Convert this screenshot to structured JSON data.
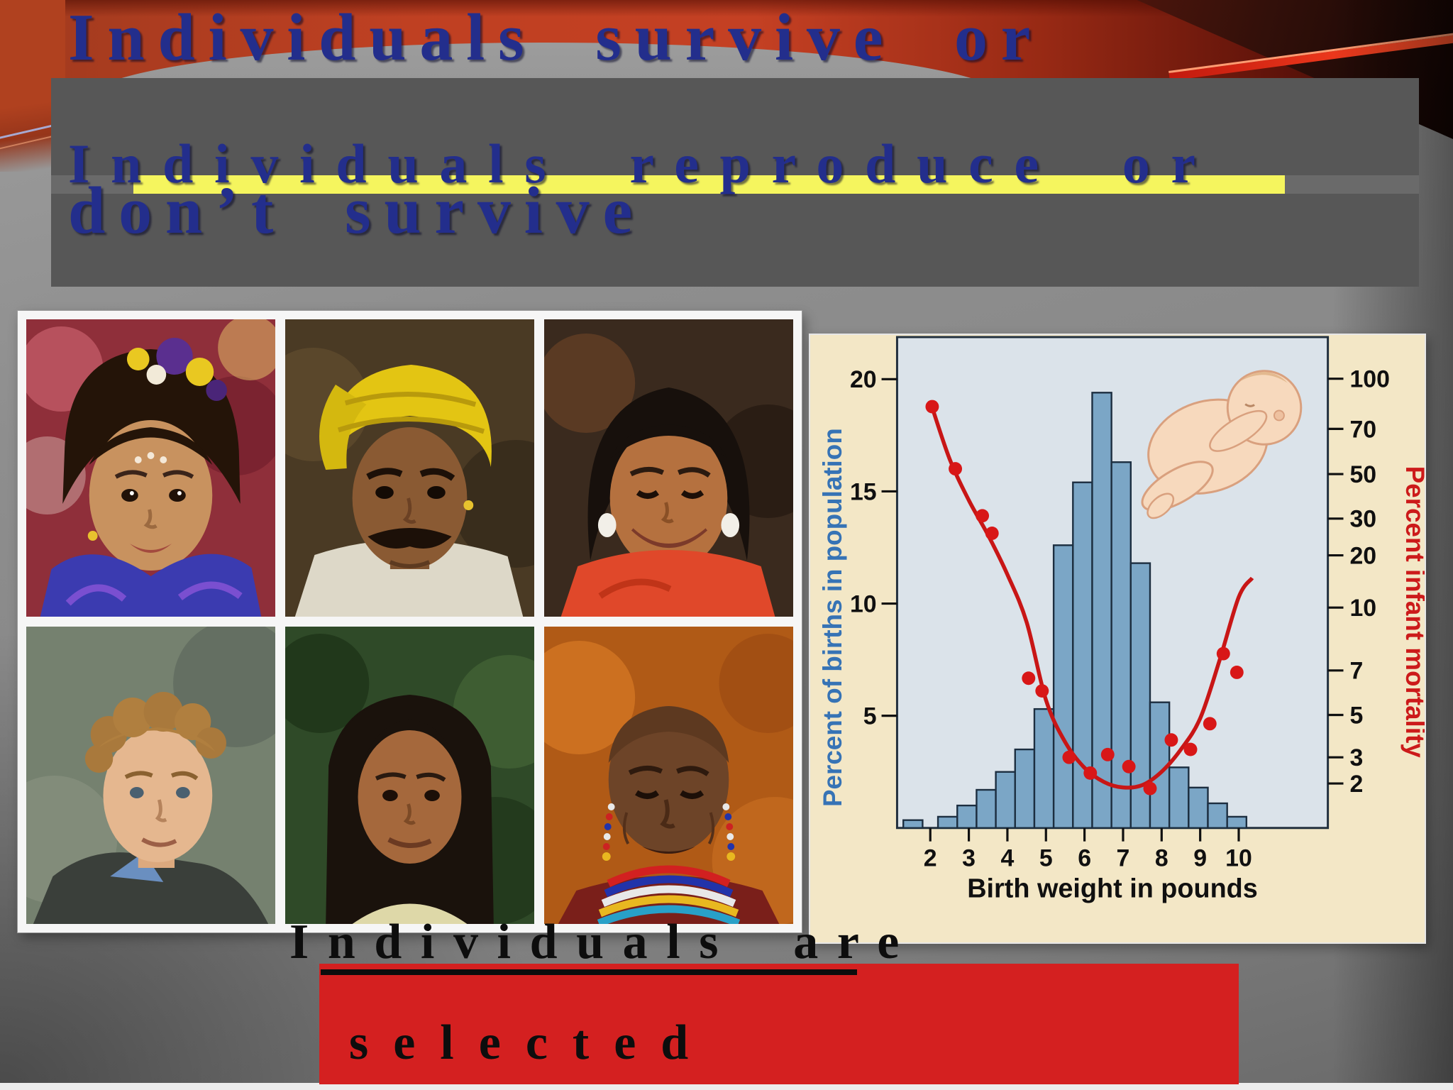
{
  "slide": {
    "title_line_1": "Individuals survive or",
    "title_line_2": "don’t survive",
    "subtitle_line_1": "Individuals reproduce or",
    "subtitle_line_2": "don’t…",
    "caption_top": "Individuals are",
    "caption_bottom": "selected"
  },
  "colors": {
    "title_navy": "#232e8c",
    "yellow_highlight": "#f5f55e",
    "gray_box": "#575757",
    "red_box": "#d42020",
    "slide_red_band": "#bf4022",
    "histogram_fill": "#7ba6c6",
    "curve_red": "#c81616",
    "dot_red": "#d81717",
    "left_axis_blue": "#3673b5",
    "right_axis_red": "#cc1a1a",
    "panel_tan": "#f3e7c6",
    "plot_bg": "#dbe3ea"
  },
  "photos": [
    {
      "id": "girl-headdress",
      "label": "Girl with flower headdress and forehead dots"
    },
    {
      "id": "turban-man",
      "label": "Man with yellow turban and mustache"
    },
    {
      "id": "smiling-woman",
      "label": "Smiling woman with white earrings and orange top"
    },
    {
      "id": "curly-man",
      "label": "Man with curly light-brown hair and blue collar"
    },
    {
      "id": "longhair-woman",
      "label": "Woman with long dark center-parted hair"
    },
    {
      "id": "elder-woman",
      "label": "Older woman with shaved head and beaded collar"
    }
  ],
  "chart_data": {
    "type": "bar",
    "subtype": "histogram with log-scale mortality scatter and U-curve",
    "title": "",
    "xlabel": "Birth weight in pounds",
    "ylabel_left": "Percent of births in population",
    "ylabel_right": "Percent infant mortality",
    "x_ticks": [
      2,
      3,
      4,
      5,
      6,
      7,
      8,
      9,
      10
    ],
    "xlim": [
      1.1,
      12.3
    ],
    "left_ticks": [
      20,
      15,
      10,
      5
    ],
    "left_ylim": [
      0,
      21.9
    ],
    "right_ticks": [
      100,
      70,
      50,
      30,
      20,
      10,
      7,
      5,
      3,
      2
    ],
    "right_scale": "log",
    "grid": false,
    "legend": "none",
    "bars_percent_of_births": [
      {
        "from_lb": 1.3,
        "to_lb": 1.8,
        "percent": 0.35
      },
      {
        "from_lb": 2.2,
        "to_lb": 2.7,
        "percent": 0.5
      },
      {
        "from_lb": 2.7,
        "to_lb": 3.2,
        "percent": 1.0
      },
      {
        "from_lb": 3.2,
        "to_lb": 3.7,
        "percent": 1.7
      },
      {
        "from_lb": 3.7,
        "to_lb": 4.2,
        "percent": 2.5
      },
      {
        "from_lb": 4.2,
        "to_lb": 4.7,
        "percent": 3.5
      },
      {
        "from_lb": 4.7,
        "to_lb": 5.2,
        "percent": 5.3
      },
      {
        "from_lb": 5.2,
        "to_lb": 5.7,
        "percent": 12.6
      },
      {
        "from_lb": 5.7,
        "to_lb": 6.2,
        "percent": 15.4
      },
      {
        "from_lb": 6.2,
        "to_lb": 6.7,
        "percent": 19.4
      },
      {
        "from_lb": 6.7,
        "to_lb": 7.2,
        "percent": 16.3
      },
      {
        "from_lb": 7.2,
        "to_lb": 7.7,
        "percent": 11.8
      },
      {
        "from_lb": 7.7,
        "to_lb": 8.2,
        "percent": 5.6
      },
      {
        "from_lb": 8.2,
        "to_lb": 8.7,
        "percent": 2.7
      },
      {
        "from_lb": 8.7,
        "to_lb": 9.2,
        "percent": 1.8
      },
      {
        "from_lb": 9.2,
        "to_lb": 9.7,
        "percent": 1.1
      },
      {
        "from_lb": 9.7,
        "to_lb": 10.2,
        "percent": 0.5
      }
    ],
    "mortality_points": [
      {
        "lb": 2.05,
        "percent": 82
      },
      {
        "lb": 2.65,
        "percent": 52
      },
      {
        "lb": 3.35,
        "percent": 31
      },
      {
        "lb": 3.6,
        "percent": 25.5
      },
      {
        "lb": 4.55,
        "percent": 6.6
      },
      {
        "lb": 4.9,
        "percent": 6.0
      },
      {
        "lb": 5.6,
        "percent": 3.0
      },
      {
        "lb": 6.15,
        "percent": 2.35
      },
      {
        "lb": 6.6,
        "percent": 3.1
      },
      {
        "lb": 7.15,
        "percent": 2.6
      },
      {
        "lb": 7.7,
        "percent": 1.85
      },
      {
        "lb": 8.25,
        "percent": 3.7
      },
      {
        "lb": 8.75,
        "percent": 3.3
      },
      {
        "lb": 9.25,
        "percent": 4.5
      },
      {
        "lb": 9.6,
        "percent": 7.7
      },
      {
        "lb": 9.95,
        "percent": 6.9
      }
    ],
    "mortality_curve": [
      [
        2.0,
        85
      ],
      [
        2.5,
        56
      ],
      [
        3.0,
        37
      ],
      [
        3.5,
        25
      ],
      [
        4.0,
        15.5
      ],
      [
        4.5,
        9.2
      ],
      [
        5.0,
        5.6
      ],
      [
        5.5,
        3.6
      ],
      [
        6.0,
        2.55
      ],
      [
        6.5,
        2.05
      ],
      [
        7.0,
        1.88
      ],
      [
        7.5,
        1.95
      ],
      [
        8.0,
        2.4
      ],
      [
        8.5,
        3.3
      ],
      [
        9.0,
        4.8
      ],
      [
        9.5,
        7.4
      ],
      [
        10.0,
        11.5
      ],
      [
        10.35,
        14.8
      ]
    ]
  }
}
